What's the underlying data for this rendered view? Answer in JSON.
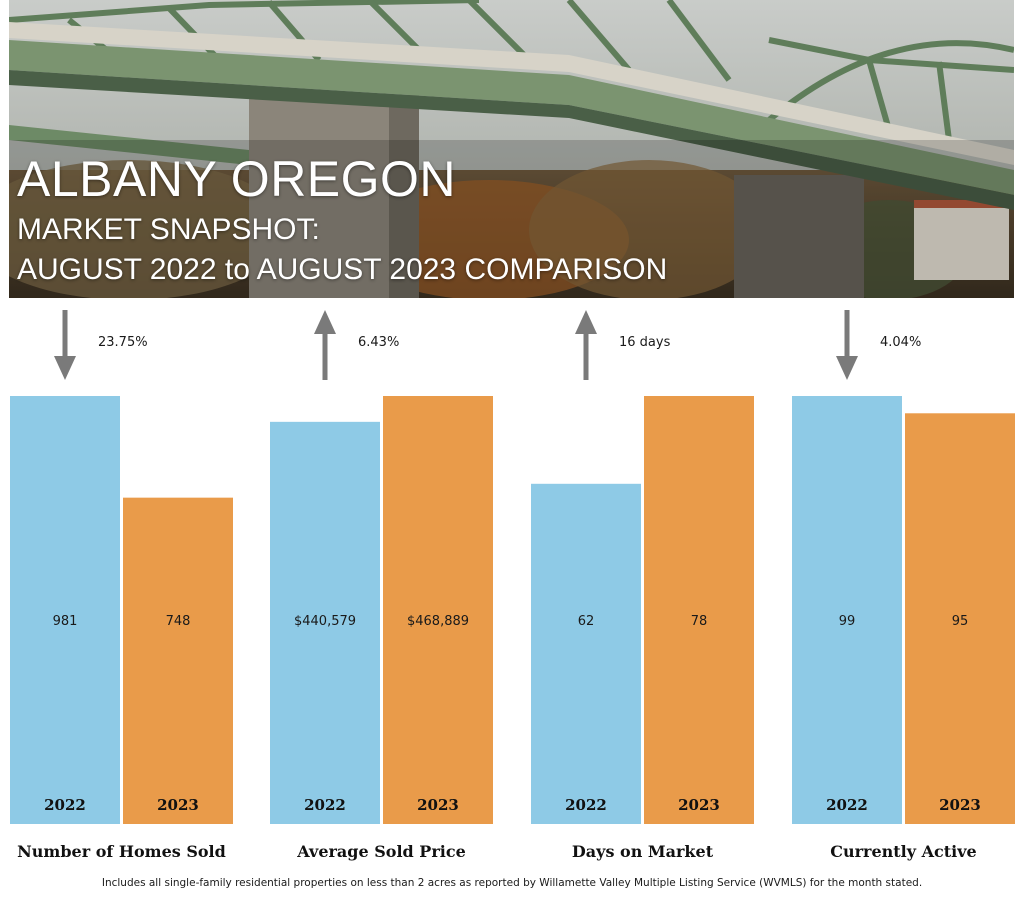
{
  "header": {
    "title": "ALBANY OREGON",
    "subtitle_line1": "MARKET SNAPSHOT:",
    "subtitle_line2": "AUGUST 2022 to AUGUST 2023 COMPARISON"
  },
  "footnote": "Includes all single-family residential properties on less than 2 acres as reported by Willamette Valley Multiple Listing Service (WVMLS) for the month stated.",
  "colors": {
    "year_2022": "#8ecae6",
    "year_2023": "#e99b4a",
    "arrow": "#7a7a7a"
  },
  "chart_data": [
    {
      "type": "bar",
      "title": "Number of Homes Sold",
      "categories": [
        "2022",
        "2023"
      ],
      "values": [
        981,
        748
      ],
      "value_labels": [
        "981",
        "748"
      ],
      "change": {
        "direction": "down",
        "label": "23.75%"
      }
    },
    {
      "type": "bar",
      "title": "Average Sold Price",
      "categories": [
        "2022",
        "2023"
      ],
      "values": [
        440579,
        468889
      ],
      "value_labels": [
        "$440,579",
        "$468,889"
      ],
      "change": {
        "direction": "up",
        "label": "6.43%"
      }
    },
    {
      "type": "bar",
      "title": "Days on Market",
      "categories": [
        "2022",
        "2023"
      ],
      "values": [
        62,
        78
      ],
      "value_labels": [
        "62",
        "78"
      ],
      "change": {
        "direction": "up",
        "label": "16 days"
      }
    },
    {
      "type": "bar",
      "title": "Currently Active",
      "categories": [
        "2022",
        "2023"
      ],
      "values": [
        99,
        95
      ],
      "value_labels": [
        "99",
        "95"
      ],
      "change": {
        "direction": "down",
        "label": "4.04%"
      }
    }
  ]
}
